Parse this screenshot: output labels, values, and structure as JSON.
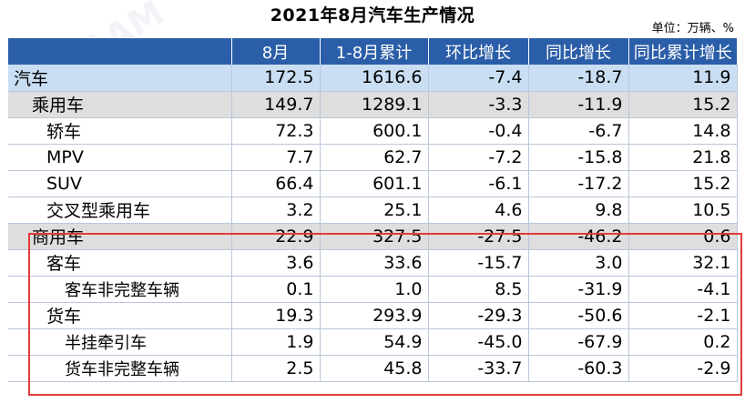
{
  "title": "2021年8月汽车生产情况",
  "unit": "单位：万辆、%",
  "columns": [
    "8月",
    "1-8月累计",
    "环比增长",
    "同比增长",
    "同比累计增长"
  ],
  "rows": [
    {
      "label": "汽车",
      "level": 0,
      "values": [
        "172.5",
        "1616.6",
        "-7.4",
        "-18.7",
        "11.9"
      ]
    },
    {
      "label": "乘用车",
      "level": 1,
      "values": [
        "149.7",
        "1289.1",
        "-3.3",
        "-11.9",
        "15.2"
      ]
    },
    {
      "label": "轿车",
      "level": 2,
      "values": [
        "72.3",
        "600.1",
        "-0.4",
        "-6.7",
        "14.8"
      ]
    },
    {
      "label": "MPV",
      "level": 2,
      "values": [
        "7.7",
        "62.7",
        "-7.2",
        "-15.8",
        "21.8"
      ]
    },
    {
      "label": "SUV",
      "level": 2,
      "values": [
        "66.4",
        "601.1",
        "-6.1",
        "-17.2",
        "15.2"
      ]
    },
    {
      "label": "交叉型乘用车",
      "level": 2,
      "values": [
        "3.2",
        "25.1",
        "4.6",
        "9.8",
        "10.5"
      ]
    },
    {
      "label": "商用车",
      "level": 1,
      "values": [
        "22.9",
        "327.5",
        "-27.5",
        "-46.2",
        "0.6"
      ]
    },
    {
      "label": "客车",
      "level": 2,
      "values": [
        "3.6",
        "33.6",
        "-15.7",
        "3.0",
        "32.1"
      ]
    },
    {
      "label": "客车非完整车辆",
      "level": 3,
      "values": [
        "0.1",
        "1.0",
        "8.5",
        "-31.9",
        "-4.1"
      ]
    },
    {
      "label": "货车",
      "level": 2,
      "values": [
        "19.3",
        "293.9",
        "-29.3",
        "-50.6",
        "-2.1"
      ]
    },
    {
      "label": "半挂牵引车",
      "level": 3,
      "values": [
        "1.9",
        "54.9",
        "-45.0",
        "-67.9",
        "0.2"
      ]
    },
    {
      "label": "货车非完整车辆",
      "level": 3,
      "values": [
        "2.5",
        "45.8",
        "-33.7",
        "-60.3",
        "-2.9"
      ]
    }
  ],
  "colors": {
    "header": "#2b5ea8",
    "level0": "#c9def3",
    "level1": "#dedede",
    "highlight_outline": "#e23a3a"
  }
}
